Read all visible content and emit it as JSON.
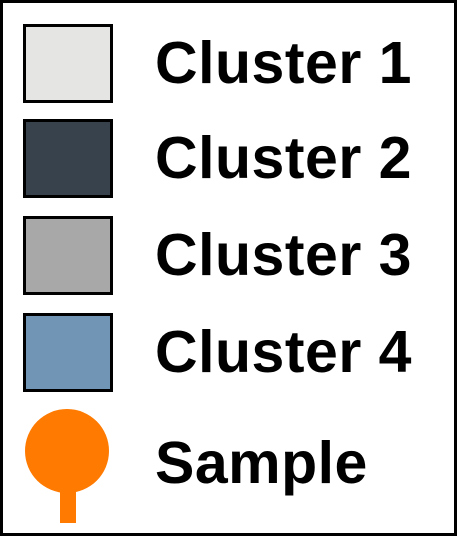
{
  "chart_data": {
    "type": "legend",
    "entries": [
      {
        "label": "Cluster 1",
        "color": "#e5e5e3",
        "marker": "square"
      },
      {
        "label": "Cluster 2",
        "color": "#37424c",
        "marker": "square"
      },
      {
        "label": "Cluster 3",
        "color": "#a8a8a8",
        "marker": "square"
      },
      {
        "label": "Cluster 4",
        "color": "#7195b5",
        "marker": "square"
      },
      {
        "label": "Sample",
        "color": "#ff7a00",
        "marker": "pin"
      }
    ]
  }
}
